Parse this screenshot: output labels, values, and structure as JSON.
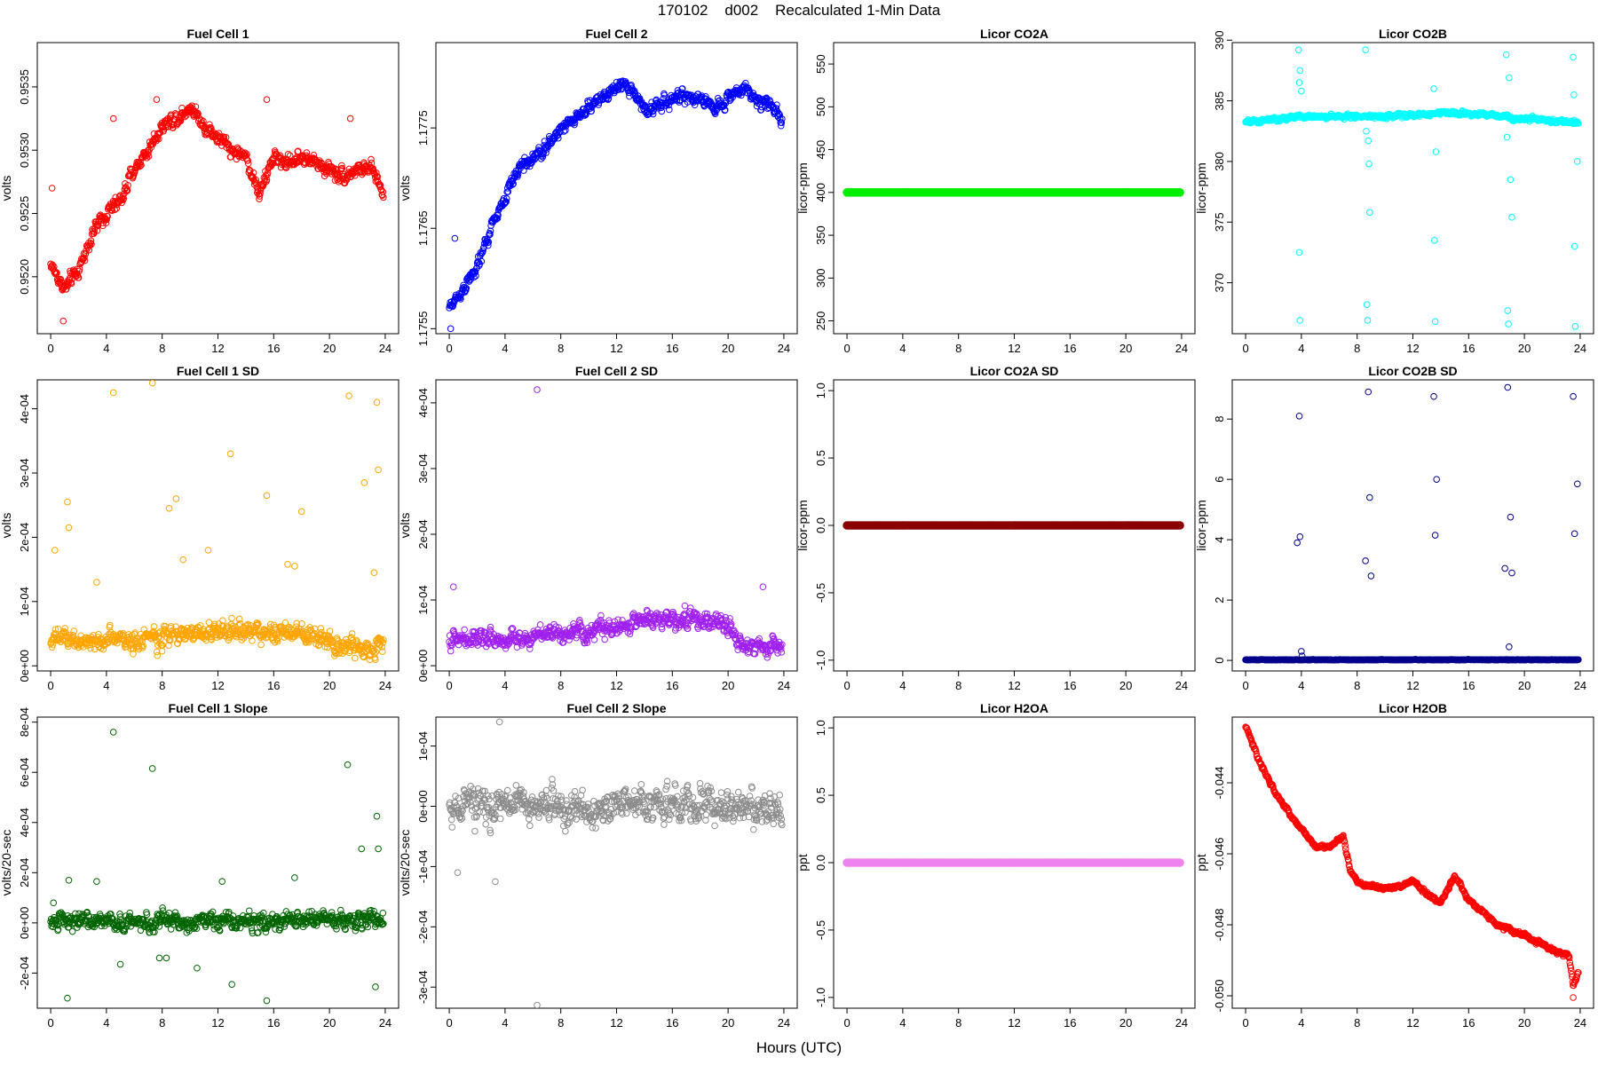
{
  "title": "170102    d002    Recalculated 1-Min Data",
  "xlabel": "Hours (UTC)",
  "x_ticks": [
    0,
    4,
    8,
    12,
    16,
    20,
    24
  ],
  "chart_data": [
    {
      "type": "scatter",
      "title": "Fuel Cell 1",
      "ylabel": "volts",
      "color": "#ff0000",
      "xlim": [
        -0.96,
        24.96
      ],
      "ylim": [
        0.95155,
        0.95385
      ],
      "yticks": [
        0.952,
        0.9525,
        0.953,
        0.9535
      ],
      "ytick_labels": [
        "0.9520",
        "0.9525",
        "0.9530",
        "0.9535"
      ],
      "trend": [
        [
          0,
          0.9521
        ],
        [
          1,
          0.9519
        ],
        [
          2,
          0.95205
        ],
        [
          3,
          0.95235
        ],
        [
          4,
          0.9525
        ],
        [
          5,
          0.9526
        ],
        [
          6,
          0.95285
        ],
        [
          7,
          0.953
        ],
        [
          8,
          0.9532
        ],
        [
          9,
          0.95325
        ],
        [
          10,
          0.95335
        ],
        [
          11,
          0.9532
        ],
        [
          12,
          0.9531
        ],
        [
          13,
          0.953
        ],
        [
          14,
          0.95295
        ],
        [
          15,
          0.95265
        ],
        [
          16,
          0.95295
        ],
        [
          17,
          0.9529
        ],
        [
          18,
          0.95295
        ],
        [
          19,
          0.9529
        ],
        [
          20,
          0.95285
        ],
        [
          21,
          0.9528
        ],
        [
          22,
          0.95285
        ],
        [
          23,
          0.95285
        ],
        [
          23.9,
          0.95265
        ]
      ],
      "noise": 7e-05,
      "outliers": [
        [
          0.1,
          0.9527
        ],
        [
          0.9,
          0.95165
        ],
        [
          4.5,
          0.95325
        ],
        [
          7.6,
          0.9534
        ],
        [
          15.5,
          0.9534
        ],
        [
          21.5,
          0.95325
        ]
      ]
    },
    {
      "type": "scatter",
      "title": "Fuel Cell 2",
      "ylabel": "volts",
      "color": "#0000ff",
      "xlim": [
        -0.96,
        24.96
      ],
      "ylim": [
        1.17545,
        1.17835
      ],
      "yticks": [
        1.1755,
        1.1765,
        1.1775
      ],
      "ytick_labels": [
        "1.1755",
        "1.1765",
        "1.1775"
      ],
      "trend": [
        [
          0,
          1.1757
        ],
        [
          1,
          1.1759
        ],
        [
          2,
          1.1761
        ],
        [
          3,
          1.1765
        ],
        [
          4,
          1.1768
        ],
        [
          5,
          1.1771
        ],
        [
          6,
          1.1772
        ],
        [
          7,
          1.1773
        ],
        [
          8,
          1.1775
        ],
        [
          9,
          1.1776
        ],
        [
          10,
          1.1777
        ],
        [
          11,
          1.1778
        ],
        [
          12,
          1.1779
        ],
        [
          13,
          1.1779
        ],
        [
          14,
          1.1777
        ],
        [
          15,
          1.1777
        ],
        [
          16,
          1.1778
        ],
        [
          17,
          1.1778
        ],
        [
          18,
          1.1778
        ],
        [
          19,
          1.1777
        ],
        [
          20,
          1.1778
        ],
        [
          21,
          1.1779
        ],
        [
          22,
          1.1778
        ],
        [
          23,
          1.1777
        ],
        [
          23.9,
          1.1776
        ]
      ],
      "noise": 8e-05,
      "outliers": [
        [
          0.1,
          1.1755
        ],
        [
          0.4,
          1.1764
        ]
      ]
    },
    {
      "type": "scatter",
      "title": "Licor CO2A",
      "ylabel": "licor-ppm",
      "color": "#00ee00",
      "xlim": [
        -0.96,
        24.96
      ],
      "ylim": [
        235,
        575
      ],
      "yticks": [
        250,
        300,
        350,
        400,
        450,
        500,
        550
      ],
      "ytick_labels": [
        "250",
        "300",
        "350",
        "400",
        "450",
        "500",
        "550"
      ],
      "trend": [
        [
          0,
          400
        ],
        [
          23.9,
          400
        ]
      ],
      "noise": 0,
      "outliers": []
    },
    {
      "type": "scatter",
      "title": "Licor CO2B",
      "ylabel": "licor-ppm",
      "color": "#00ffff",
      "xlim": [
        -0.96,
        24.96
      ],
      "ylim": [
        365.8,
        389.8
      ],
      "yticks": [
        370,
        375,
        380,
        385,
        390
      ],
      "ytick_labels": [
        "370",
        "375",
        "380",
        "385",
        "390"
      ],
      "trend": [
        [
          0,
          383.2
        ],
        [
          4,
          383.7
        ],
        [
          8,
          383.7
        ],
        [
          12,
          383.8
        ],
        [
          14,
          384.0
        ],
        [
          18,
          383.8
        ],
        [
          20,
          383.5
        ],
        [
          23.9,
          383.2
        ]
      ],
      "noise": 0.2,
      "outliers": [
        [
          3.8,
          389.2
        ],
        [
          3.85,
          386.5
        ],
        [
          3.9,
          387.5
        ],
        [
          4.0,
          385.8
        ],
        [
          3.85,
          372.5
        ],
        [
          3.9,
          366.9
        ],
        [
          8.6,
          389.2
        ],
        [
          8.65,
          382.5
        ],
        [
          8.7,
          368.2
        ],
        [
          8.75,
          366.9
        ],
        [
          8.8,
          381.7
        ],
        [
          8.85,
          379.8
        ],
        [
          8.9,
          375.8
        ],
        [
          13.5,
          386.0
        ],
        [
          13.55,
          373.5
        ],
        [
          13.6,
          366.8
        ],
        [
          13.65,
          380.8
        ],
        [
          18.7,
          388.8
        ],
        [
          18.75,
          382.0
        ],
        [
          18.8,
          367.7
        ],
        [
          18.85,
          366.6
        ],
        [
          18.9,
          386.9
        ],
        [
          19.0,
          378.5
        ],
        [
          19.1,
          375.4
        ],
        [
          23.5,
          388.6
        ],
        [
          23.55,
          385.5
        ],
        [
          23.6,
          373.0
        ],
        [
          23.65,
          366.4
        ],
        [
          23.8,
          380.0
        ]
      ]
    },
    {
      "type": "scatter",
      "title": "Fuel Cell 1 SD",
      "ylabel": "volts",
      "color": "#ffa500",
      "xlim": [
        -0.96,
        24.96
      ],
      "ylim": [
        -8e-06,
        0.000445
      ],
      "yticks": [
        0,
        0.0001,
        0.0002,
        0.0003,
        0.0004
      ],
      "ytick_labels": [
        "0e+00",
        "1e-04",
        "2e-04",
        "3e-04",
        "4e-04"
      ],
      "trend": [
        [
          0,
          4e-05
        ],
        [
          6,
          4e-05
        ],
        [
          10,
          5e-05
        ],
        [
          14,
          5.5e-05
        ],
        [
          18,
          5e-05
        ],
        [
          21,
          3e-05
        ],
        [
          23.9,
          3e-05
        ]
      ],
      "noise": 1.8e-05,
      "outliers": [
        [
          0.3,
          0.00018
        ],
        [
          1.2,
          0.000255
        ],
        [
          1.3,
          0.000215
        ],
        [
          3.3,
          0.00013
        ],
        [
          4.5,
          0.000425
        ],
        [
          7.3,
          0.00044
        ],
        [
          8.5,
          0.000245
        ],
        [
          9.0,
          0.00026
        ],
        [
          9.5,
          0.000165
        ],
        [
          11.3,
          0.00018
        ],
        [
          12.9,
          0.00033
        ],
        [
          15.5,
          0.000265
        ],
        [
          17.0,
          0.000158
        ],
        [
          17.5,
          0.000155
        ],
        [
          18.0,
          0.00024
        ],
        [
          21.4,
          0.00042
        ],
        [
          22.5,
          0.000285
        ],
        [
          23.2,
          0.000145
        ],
        [
          23.4,
          0.00041
        ],
        [
          23.5,
          0.000305
        ]
      ]
    },
    {
      "type": "scatter",
      "title": "Fuel Cell 2 SD",
      "ylabel": "volts",
      "color": "#a020f0",
      "xlim": [
        -0.96,
        24.96
      ],
      "ylim": [
        -8e-06,
        0.000435
      ],
      "yticks": [
        0,
        0.0001,
        0.0002,
        0.0003,
        0.0004
      ],
      "ytick_labels": [
        "0e+00",
        "1e-04",
        "2e-04",
        "3e-04",
        "4e-04"
      ],
      "trend": [
        [
          0,
          4e-05
        ],
        [
          4,
          4e-05
        ],
        [
          8,
          5e-05
        ],
        [
          12,
          6e-05
        ],
        [
          15,
          7e-05
        ],
        [
          18,
          7e-05
        ],
        [
          20,
          6e-05
        ],
        [
          21,
          3e-05
        ],
        [
          23.9,
          3e-05
        ]
      ],
      "noise": 1.6e-05,
      "outliers": [
        [
          0.3,
          0.00012
        ],
        [
          6.3,
          0.00042
        ],
        [
          22.5,
          0.00012
        ]
      ]
    },
    {
      "type": "scatter",
      "title": "Licor CO2A SD",
      "ylabel": "licor-ppm",
      "color": "#8b0000",
      "xlim": [
        -0.96,
        24.96
      ],
      "ylim": [
        -1.08,
        1.08
      ],
      "yticks": [
        -1,
        -0.5,
        0,
        0.5,
        1
      ],
      "ytick_labels": [
        "-1.0",
        "-0.5",
        "0.0",
        "0.5",
        "1.0"
      ],
      "trend": [
        [
          0,
          0
        ],
        [
          23.9,
          0
        ]
      ],
      "noise": 0,
      "outliers": []
    },
    {
      "type": "scatter",
      "title": "Licor CO2B SD",
      "ylabel": "licor-ppm",
      "color": "#00008b",
      "xlim": [
        -0.96,
        24.96
      ],
      "ylim": [
        -0.35,
        9.3
      ],
      "yticks": [
        0,
        2,
        4,
        6,
        8
      ],
      "ytick_labels": [
        "0",
        "2",
        "4",
        "6",
        "8"
      ],
      "trend": [
        [
          0,
          0.02
        ],
        [
          23.9,
          0.02
        ]
      ],
      "noise": 0.01,
      "outliers": [
        [
          3.7,
          3.9
        ],
        [
          3.85,
          8.1
        ],
        [
          3.9,
          4.1
        ],
        [
          4.0,
          0.3
        ],
        [
          4.05,
          0.15
        ],
        [
          8.6,
          3.3
        ],
        [
          8.8,
          8.9
        ],
        [
          8.9,
          5.4
        ],
        [
          9.0,
          2.8
        ],
        [
          13.5,
          8.75
        ],
        [
          13.6,
          4.15
        ],
        [
          13.7,
          6.0
        ],
        [
          18.6,
          3.05
        ],
        [
          18.8,
          9.05
        ],
        [
          19.0,
          4.75
        ],
        [
          19.1,
          2.9
        ],
        [
          18.9,
          0.45
        ],
        [
          23.5,
          8.75
        ],
        [
          23.6,
          4.2
        ],
        [
          23.8,
          5.85
        ]
      ]
    },
    {
      "type": "scatter",
      "title": "Fuel Cell 1 Slope",
      "ylabel": "volts/20-sec",
      "color": "#006400",
      "xlim": [
        -0.96,
        24.96
      ],
      "ylim": [
        -0.00034,
        0.00082
      ],
      "yticks": [
        -0.0002,
        0,
        0.0002,
        0.0004,
        0.0006,
        0.0008
      ],
      "ytick_labels": [
        "-2e-04",
        "0e+00",
        "2e-04",
        "4e-04",
        "6e-04",
        "8e-04"
      ],
      "trend": [
        [
          0,
          5e-06
        ],
        [
          23.9,
          5e-06
        ]
      ],
      "noise": 4.5e-05,
      "outliers": [
        [
          0.2,
          8e-05
        ],
        [
          1.2,
          -0.0003
        ],
        [
          1.3,
          0.00017
        ],
        [
          3.3,
          0.000165
        ],
        [
          4.5,
          0.00076
        ],
        [
          5.0,
          -0.000165
        ],
        [
          7.3,
          0.000615
        ],
        [
          7.8,
          -0.00014
        ],
        [
          8.3,
          -0.00014
        ],
        [
          10.5,
          -0.00018
        ],
        [
          12.3,
          0.000165
        ],
        [
          13.0,
          -0.000245
        ],
        [
          15.5,
          -0.00031
        ],
        [
          17.5,
          0.00018
        ],
        [
          21.3,
          0.00063
        ],
        [
          22.3,
          0.000295
        ],
        [
          23.3,
          -0.000255
        ],
        [
          23.4,
          0.000425
        ],
        [
          23.5,
          0.000295
        ]
      ]
    },
    {
      "type": "scatter",
      "title": "Fuel Cell 2 Slope",
      "ylabel": "volts/20-sec",
      "color": "#8c8c8c",
      "xlim": [
        -0.96,
        24.96
      ],
      "ylim": [
        -0.000335,
        0.000148
      ],
      "yticks": [
        -0.0003,
        -0.0002,
        -0.0001,
        0,
        0.0001
      ],
      "ytick_labels": [
        "-3e-04",
        "-2e-04",
        "-1e-04",
        "0e+00",
        "1e-04"
      ],
      "trend": [
        [
          0,
          0.0
        ],
        [
          23.9,
          0.0
        ]
      ],
      "noise": 3.5e-05,
      "outliers": [
        [
          3.6,
          0.00014
        ],
        [
          3.3,
          -0.000125
        ],
        [
          6.3,
          -0.00033
        ],
        [
          0.6,
          -0.00011
        ]
      ]
    },
    {
      "type": "scatter",
      "title": "Licor H2OA",
      "ylabel": "ppt",
      "color": "#ee82ee",
      "xlim": [
        -0.96,
        24.96
      ],
      "ylim": [
        -1.08,
        1.08
      ],
      "yticks": [
        -1,
        -0.5,
        0,
        0.5,
        1
      ],
      "ytick_labels": [
        "-1.0",
        "-0.5",
        "0.0",
        "0.5",
        "1.0"
      ],
      "trend": [
        [
          0,
          0
        ],
        [
          23.9,
          0
        ]
      ],
      "noise": 0,
      "outliers": []
    },
    {
      "type": "scatter",
      "title": "Licor H2OB",
      "ylabel": "ppt",
      "color": "#ff0000",
      "xlim": [
        -0.96,
        24.96
      ],
      "ylim": [
        -0.05035,
        -0.04215
      ],
      "yticks": [
        -0.05,
        -0.048,
        -0.046,
        -0.044
      ],
      "ytick_labels": [
        "-0.050",
        "-0.048",
        "-0.046",
        "-0.044"
      ],
      "trend": [
        [
          0,
          -0.0424
        ],
        [
          1,
          -0.0434
        ],
        [
          2,
          -0.0442
        ],
        [
          3,
          -0.0448
        ],
        [
          4,
          -0.0453
        ],
        [
          5,
          -0.0458
        ],
        [
          6,
          -0.0458
        ],
        [
          7,
          -0.0455
        ],
        [
          7.5,
          -0.0465
        ],
        [
          8,
          -0.0468
        ],
        [
          10,
          -0.047
        ],
        [
          12,
          -0.0468
        ],
        [
          13,
          -0.0471
        ],
        [
          14,
          -0.0474
        ],
        [
          15,
          -0.0466
        ],
        [
          16,
          -0.0473
        ],
        [
          18,
          -0.048
        ],
        [
          20,
          -0.0483
        ],
        [
          22,
          -0.0487
        ],
        [
          23.2,
          -0.0489
        ],
        [
          23.5,
          -0.0497
        ],
        [
          23.9,
          -0.0493
        ]
      ],
      "noise": 7e-05,
      "outliers": [
        [
          23.5,
          -0.05005
        ]
      ]
    }
  ]
}
